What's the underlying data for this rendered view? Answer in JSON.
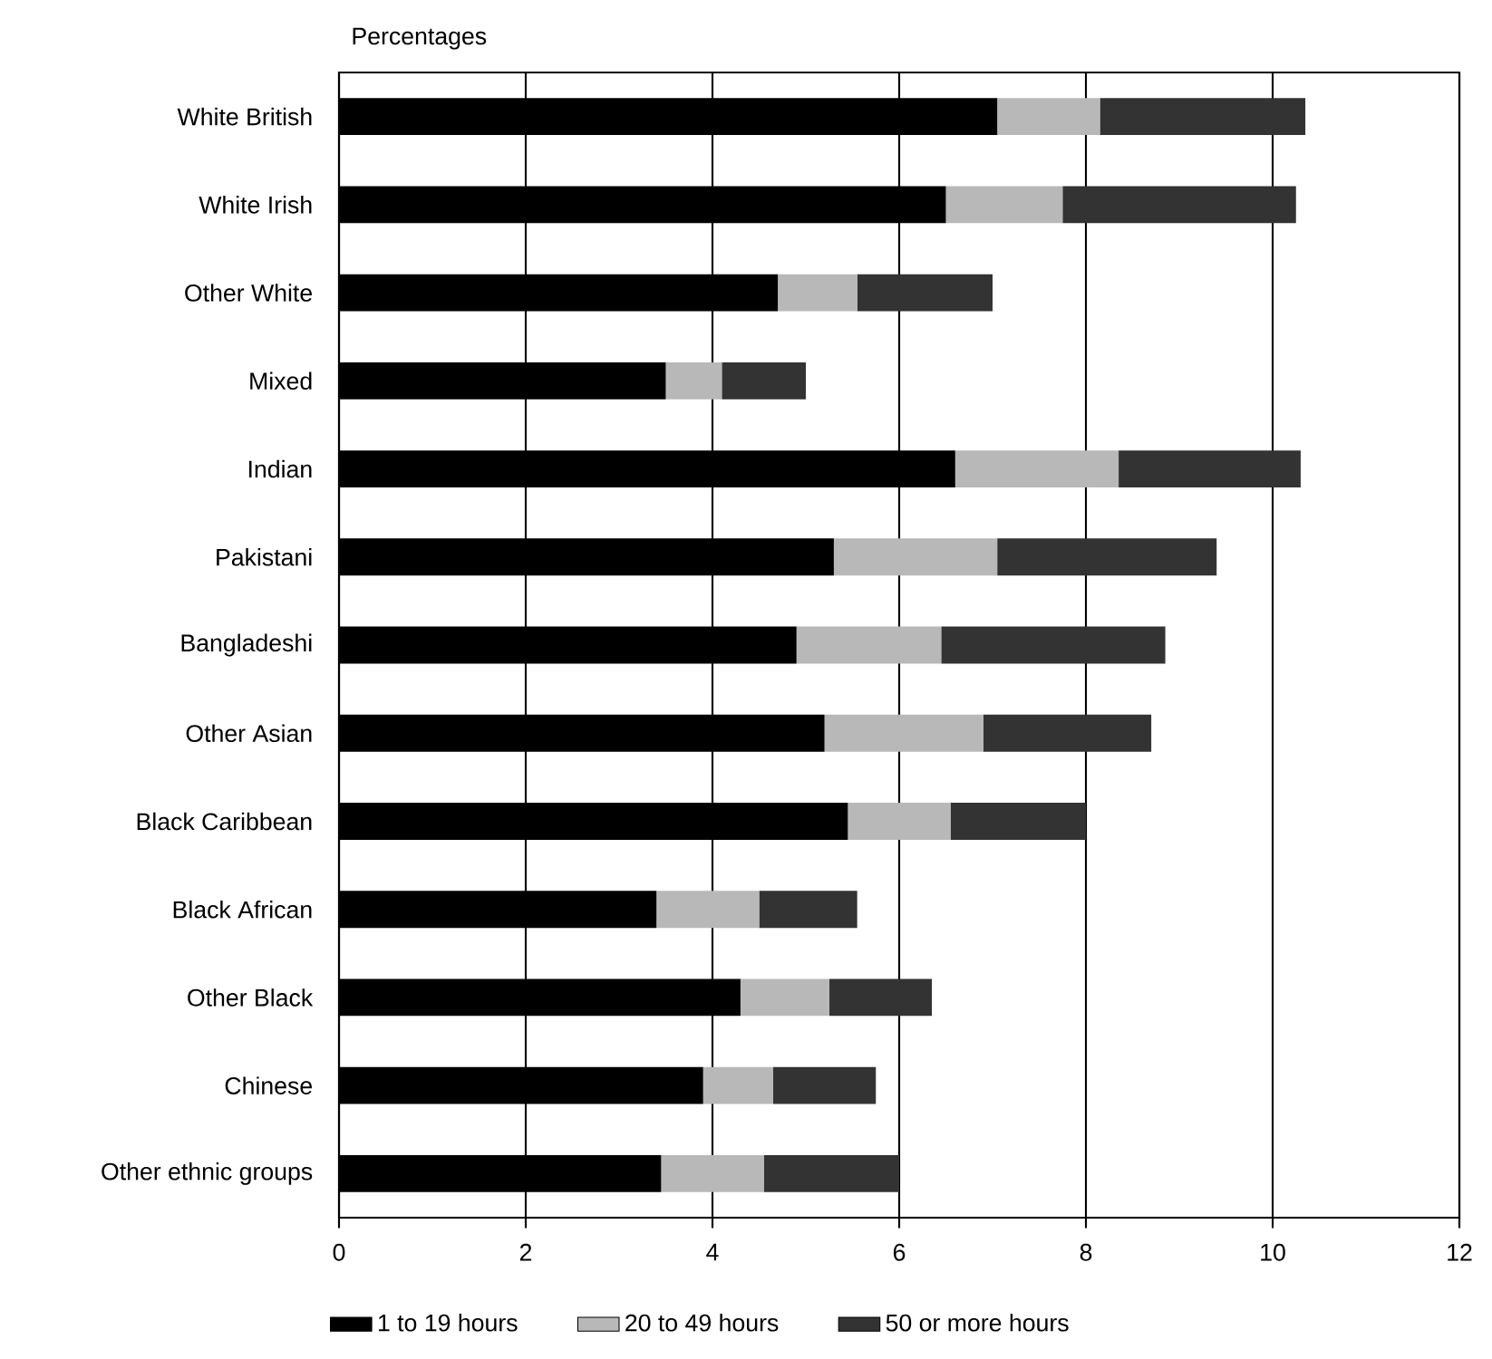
{
  "chart_data": {
    "type": "bar",
    "orientation": "horizontal",
    "stacked": true,
    "xlabel": "Percentages",
    "categories": [
      "White British",
      "White Irish",
      "Other White",
      "Mixed",
      "Indian",
      "Pakistani",
      "Bangladeshi",
      "Other Asian",
      "Black Caribbean",
      "Black African",
      "Other Black",
      "Chinese",
      "Other ethnic groups"
    ],
    "series": [
      {
        "name": "1 to 19 hours",
        "color": "#000000",
        "values": [
          7.05,
          6.5,
          4.7,
          3.5,
          6.6,
          5.3,
          4.9,
          5.2,
          5.45,
          3.4,
          4.3,
          3.9,
          3.45
        ]
      },
      {
        "name": "20 to 49 hours",
        "color": "#b8b8b8",
        "values": [
          1.1,
          1.25,
          0.85,
          0.6,
          1.75,
          1.75,
          1.55,
          1.7,
          1.1,
          1.1,
          0.95,
          0.75,
          1.1
        ]
      },
      {
        "name": "50 or more hours",
        "color": "#333333",
        "values": [
          2.2,
          2.5,
          1.45,
          0.9,
          1.95,
          2.35,
          2.4,
          1.8,
          1.45,
          1.05,
          1.1,
          1.1,
          1.45
        ]
      }
    ],
    "xlim": [
      0,
      12
    ],
    "xticks": [
      0,
      2,
      4,
      6,
      8,
      10,
      12
    ],
    "grid": "x",
    "legend": "bottom"
  }
}
